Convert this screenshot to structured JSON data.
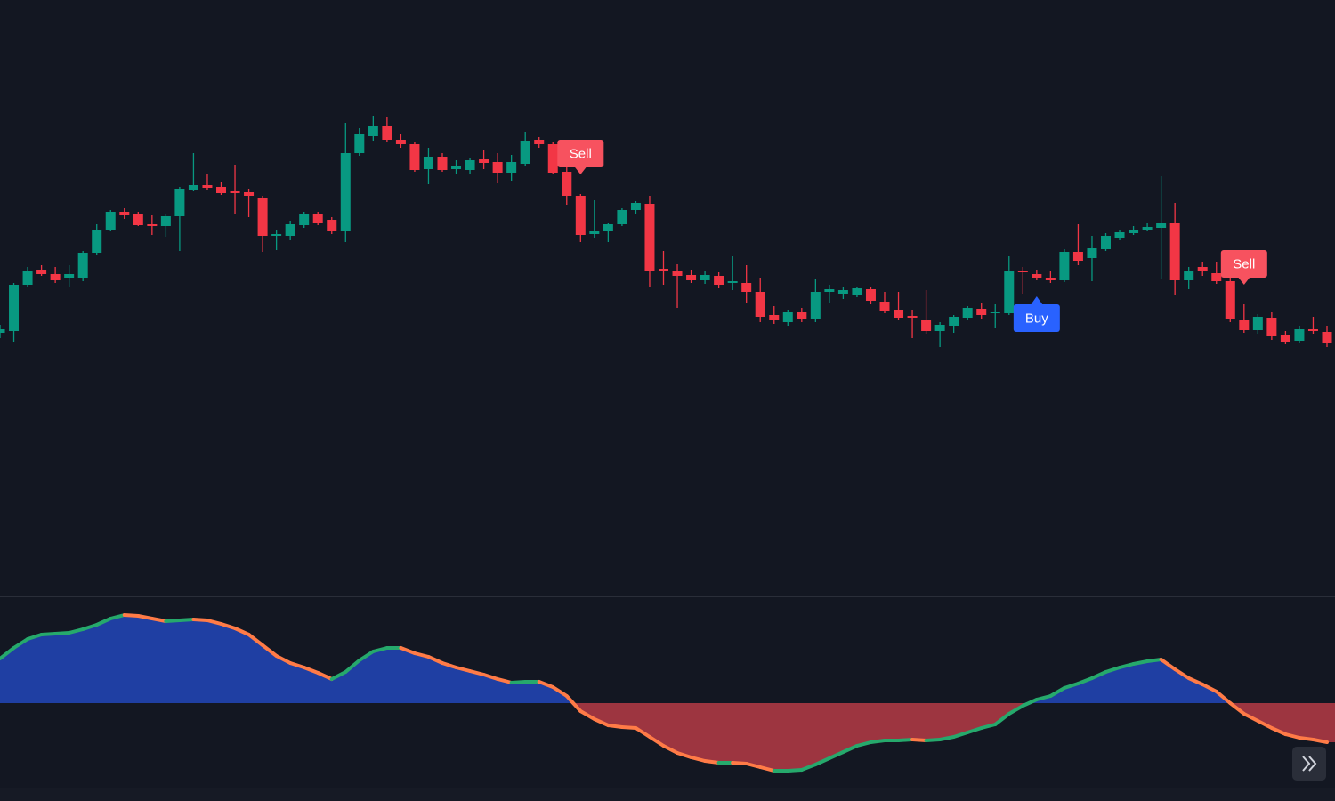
{
  "chart_data": [
    {
      "type": "candlestick",
      "open": [
        326,
        328,
        380,
        397,
        392,
        388,
        388,
        416,
        442,
        462,
        459,
        448,
        446,
        457,
        487,
        492,
        490,
        485,
        484,
        478,
        435,
        435,
        447,
        460,
        453,
        440,
        528,
        547,
        558,
        543,
        538,
        510,
        524,
        510,
        509,
        521,
        518,
        506,
        516,
        543,
        538,
        507,
        480,
        437,
        440,
        448,
        464,
        471,
        398,
        396,
        391,
        385,
        390,
        382,
        382,
        372,
        346,
        338,
        350,
        342,
        372,
        370,
        368,
        375,
        361,
        352,
        345,
        341,
        328,
        334,
        343,
        353,
        348,
        348,
        396,
        392,
        388,
        385,
        417,
        410,
        420,
        433,
        438,
        442,
        444,
        450,
        385,
        400,
        393,
        384,
        340,
        329,
        343,
        324,
        317,
        330,
        327
      ],
      "high": [
        335,
        382,
        400,
        402,
        400,
        402,
        418,
        448,
        464,
        466,
        462,
        458,
        460,
        490,
        528,
        504,
        495,
        515,
        488,
        480,
        442,
        452,
        462,
        462,
        456,
        562,
        556,
        570,
        568,
        550,
        540,
        534,
        528,
        520,
        523,
        532,
        528,
        526,
        552,
        546,
        540,
        512,
        482,
        475,
        450,
        466,
        474,
        480,
        418,
        403,
        397,
        395,
        394,
        412,
        402,
        388,
        356,
        352,
        354,
        386,
        380,
        378,
        378,
        378,
        372,
        372,
        352,
        374,
        338,
        346,
        356,
        360,
        358,
        412,
        400,
        397,
        396,
        420,
        448,
        435,
        438,
        442,
        446,
        450,
        502,
        472,
        400,
        406,
        406,
        394,
        358,
        347,
        350,
        328,
        334,
        344,
        334
      ],
      "low": [
        320,
        316,
        378,
        390,
        382,
        378,
        384,
        414,
        440,
        454,
        446,
        436,
        434,
        418,
        485,
        486,
        481,
        460,
        456,
        417,
        419,
        430,
        444,
        447,
        437,
        428,
        525,
        542,
        540,
        534,
        507,
        493,
        507,
        505,
        505,
        510,
        494,
        497,
        513,
        534,
        504,
        470,
        428,
        433,
        428,
        446,
        460,
        378,
        380,
        354,
        382,
        381,
        376,
        374,
        360,
        338,
        336,
        334,
        338,
        338,
        360,
        364,
        366,
        358,
        348,
        340,
        320,
        325,
        310,
        326,
        340,
        342,
        332,
        346,
        370,
        385,
        382,
        383,
        402,
        384,
        418,
        430,
        436,
        440,
        386,
        368,
        375,
        390,
        381,
        338,
        326,
        325,
        318,
        314,
        315,
        325,
        310
      ],
      "close": [
        330,
        380,
        395,
        392,
        385,
        392,
        416,
        442,
        462,
        458,
        447,
        446,
        457,
        488,
        492,
        489,
        483,
        483,
        480,
        435,
        437,
        448,
        459,
        450,
        440,
        528,
        550,
        558,
        543,
        538,
        509,
        524,
        509,
        514,
        520,
        517,
        506,
        518,
        542,
        538,
        506,
        480,
        436,
        441,
        448,
        464,
        472,
        396,
        396,
        390,
        385,
        391,
        380,
        384,
        372,
        344,
        340,
        350,
        342,
        372,
        375,
        374,
        376,
        362,
        351,
        343,
        343,
        328,
        335,
        344,
        354,
        346,
        350,
        395,
        394,
        388,
        385,
        417,
        407,
        421,
        435,
        439,
        442,
        445,
        450,
        385,
        395,
        396,
        384,
        342,
        329,
        344,
        322,
        316,
        330,
        328,
        315
      ],
      "ylim": [
        30,
        700
      ],
      "up_color": "#089981",
      "down_color": "#f23645",
      "markers": [
        {
          "index": 42,
          "text": "Sell",
          "position": "above",
          "color": "#f7525f"
        },
        {
          "index": 75,
          "text": "Buy",
          "position": "below",
          "color": "#2962ff"
        },
        {
          "index": 90,
          "text": "Sell",
          "position": "above",
          "color": "#f7525f"
        }
      ]
    },
    {
      "type": "oscillator",
      "values": [
        50,
        62,
        72,
        77,
        78,
        79,
        83,
        88,
        95,
        99,
        98,
        95,
        92,
        93,
        94,
        93,
        89,
        84,
        77,
        65,
        53,
        45,
        40,
        34,
        27,
        35,
        48,
        58,
        62,
        62,
        56,
        52,
        45,
        40,
        36,
        32,
        27,
        23,
        24,
        24,
        18,
        8,
        -9,
        -18,
        -25,
        -27,
        -28,
        -38,
        -48,
        -56,
        -61,
        -65,
        -67,
        -67,
        -68,
        -72,
        -76,
        -76,
        -75,
        -69,
        -62,
        -55,
        -48,
        -44,
        -42,
        -42,
        -41,
        -42,
        -41,
        -38,
        -33,
        -28,
        -24,
        -12,
        -3,
        4,
        8,
        17,
        22,
        28,
        35,
        40,
        44,
        47,
        49,
        38,
        28,
        21,
        13,
        0,
        -12,
        -20,
        -28,
        -35,
        -39,
        -41,
        -44
      ],
      "ylim": [
        -95,
        120
      ],
      "rising_color": "#26a96c",
      "falling_color": "#ff7b47",
      "positive_fill": "#1f3fa3",
      "negative_fill": "#9d3540"
    }
  ]
}
